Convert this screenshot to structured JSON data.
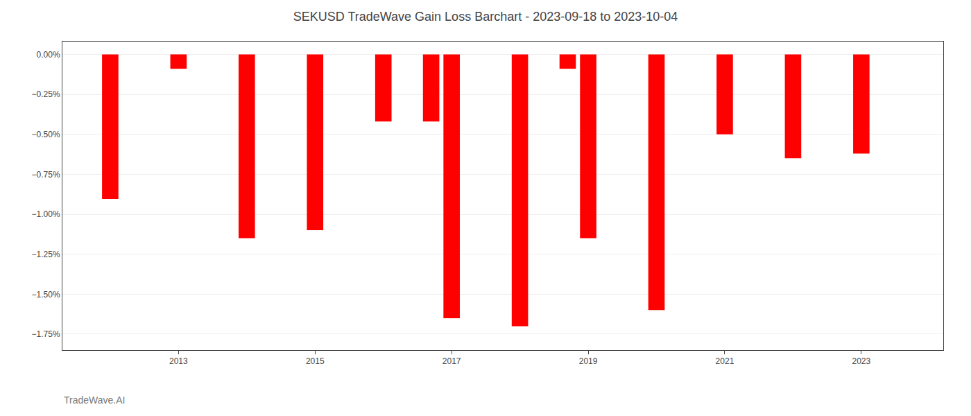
{
  "chart_data": {
    "type": "bar",
    "title": "SEKUSD TradeWave Gain Loss Barchart - 2023-09-18 to 2023-10-04",
    "annotations": [
      "TradeWave.AI"
    ],
    "x": [
      2012,
      2013,
      2014,
      2015,
      2016,
      2016.7,
      2017,
      2018,
      2018.7,
      2019,
      2020,
      2021,
      2022,
      2023
    ],
    "values": [
      -0.905,
      -0.09,
      -1.15,
      -1.1,
      -0.42,
      -0.42,
      -1.65,
      -1.7,
      -0.09,
      -1.15,
      -1.6,
      -0.5,
      -0.65,
      -0.62
    ],
    "color": "#ff0000",
    "xlim": [
      2011.3,
      2024.2
    ],
    "xticks": [
      2013,
      2015,
      2017,
      2019,
      2021,
      2023
    ],
    "ylim": [
      -1.85,
      0.08
    ],
    "yticks": [
      {
        "value": 0.0,
        "label": "0.00%"
      },
      {
        "value": -0.25,
        "label": "−0.25%"
      },
      {
        "value": -0.5,
        "label": "−0.50%"
      },
      {
        "value": -0.75,
        "label": "−0.75%"
      },
      {
        "value": -1.0,
        "label": "−1.00%"
      },
      {
        "value": -1.25,
        "label": "−1.25%"
      },
      {
        "value": -1.5,
        "label": "−1.50%"
      },
      {
        "value": -1.75,
        "label": "−1.75%"
      }
    ],
    "grid": true
  }
}
